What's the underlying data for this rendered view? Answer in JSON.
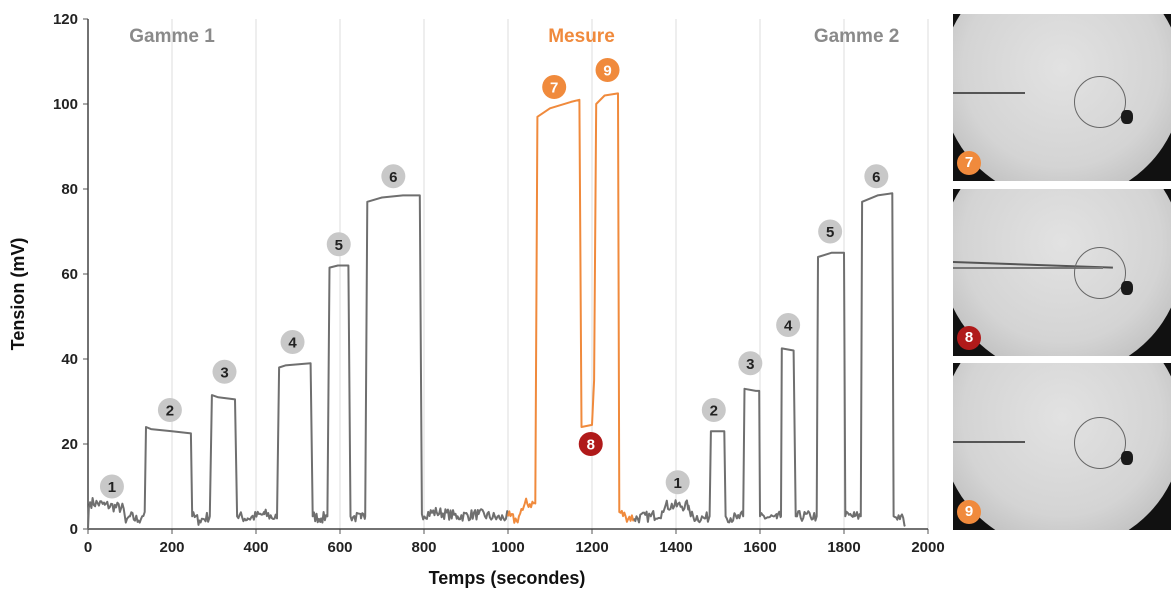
{
  "colors": {
    "gray": "#6f6f6f",
    "orange": "#f08a3c",
    "red": "#b01a1a",
    "badge_gray": "#c8c8c8"
  },
  "chart_data": {
    "type": "line",
    "xlabel": "Temps (secondes)",
    "ylabel": "Tension (mV)",
    "xlim": [
      0,
      2000
    ],
    "ylim": [
      0,
      120
    ],
    "xticks": [
      0,
      200,
      400,
      600,
      800,
      1000,
      1200,
      1400,
      1600,
      1800,
      2000
    ],
    "yticks": [
      0,
      20,
      40,
      60,
      80,
      100,
      120
    ],
    "grid": "vertical",
    "sections": [
      {
        "label": "Gamme 1",
        "x": 200,
        "color": "gray"
      },
      {
        "label": "Mesure",
        "x": 1175,
        "color": "orange"
      },
      {
        "label": "Gamme 2",
        "x": 1830,
        "color": "gray"
      }
    ],
    "series": [
      {
        "color": "gray",
        "points": [
          [
            0,
            0
          ],
          [
            2,
            5
          ],
          [
            5,
            6.3
          ],
          [
            40,
            5.7
          ],
          [
            85,
            4.8
          ],
          [
            90,
            1.5
          ],
          [
            100,
            3
          ],
          [
            120,
            2
          ],
          [
            135,
            4
          ],
          [
            138,
            24
          ],
          [
            150,
            23.5
          ],
          [
            200,
            23
          ],
          [
            245,
            22.5
          ],
          [
            248,
            3
          ],
          [
            265,
            2
          ],
          [
            290,
            3
          ],
          [
            295,
            31.5
          ],
          [
            310,
            31
          ],
          [
            350,
            30.5
          ],
          [
            355,
            3
          ],
          [
            380,
            2.5
          ],
          [
            420,
            3.5
          ],
          [
            450,
            2.5
          ],
          [
            455,
            38
          ],
          [
            470,
            38.5
          ],
          [
            530,
            39
          ],
          [
            535,
            3
          ],
          [
            555,
            2.5
          ],
          [
            570,
            3
          ],
          [
            575,
            61.5
          ],
          [
            595,
            62
          ],
          [
            620,
            62
          ],
          [
            625,
            3
          ],
          [
            650,
            2.5
          ],
          [
            660,
            3
          ],
          [
            665,
            77
          ],
          [
            700,
            78
          ],
          [
            750,
            78.5
          ],
          [
            790,
            78.5
          ],
          [
            795,
            3.5
          ],
          [
            830,
            4
          ],
          [
            880,
            3
          ],
          [
            930,
            3.5
          ],
          [
            980,
            2.5
          ],
          [
            1000,
            3
          ]
        ]
      },
      {
        "color": "orange",
        "points": [
          [
            1000,
            3
          ],
          [
            1020,
            2
          ],
          [
            1035,
            4.5
          ],
          [
            1040,
            6
          ],
          [
            1065,
            6
          ],
          [
            1070,
            97
          ],
          [
            1100,
            99
          ],
          [
            1150,
            100.5
          ],
          [
            1170,
            101
          ],
          [
            1175,
            24
          ],
          [
            1200,
            24.5
          ],
          [
            1205,
            35
          ],
          [
            1210,
            100
          ],
          [
            1230,
            102
          ],
          [
            1262,
            102.5
          ],
          [
            1265,
            4
          ],
          [
            1280,
            3
          ],
          [
            1300,
            2.5
          ]
        ]
      },
      {
        "color": "gray",
        "points": [
          [
            1300,
            2.5
          ],
          [
            1340,
            3
          ],
          [
            1370,
            4
          ],
          [
            1375,
            5.5
          ],
          [
            1430,
            5.5
          ],
          [
            1435,
            3
          ],
          [
            1470,
            2.5
          ],
          [
            1480,
            3
          ],
          [
            1483,
            23
          ],
          [
            1515,
            23
          ],
          [
            1518,
            3
          ],
          [
            1545,
            2.5
          ],
          [
            1560,
            3
          ],
          [
            1563,
            33
          ],
          [
            1590,
            32.5
          ],
          [
            1598,
            32.5
          ],
          [
            1600,
            3
          ],
          [
            1640,
            2.5
          ],
          [
            1650,
            3
          ],
          [
            1652,
            42.5
          ],
          [
            1680,
            42
          ],
          [
            1685,
            3
          ],
          [
            1720,
            3
          ],
          [
            1735,
            3
          ],
          [
            1738,
            64
          ],
          [
            1770,
            65
          ],
          [
            1800,
            65
          ],
          [
            1803,
            3
          ],
          [
            1825,
            3
          ],
          [
            1840,
            3
          ],
          [
            1843,
            77
          ],
          [
            1880,
            78.5
          ],
          [
            1915,
            79
          ],
          [
            1918,
            3
          ],
          [
            1935,
            3
          ],
          [
            1945,
            1
          ]
        ]
      }
    ],
    "annotations": [
      {
        "label": "1",
        "x": 57,
        "y": 10,
        "color": "badge_gray"
      },
      {
        "label": "2",
        "x": 195,
        "y": 28,
        "color": "badge_gray"
      },
      {
        "label": "3",
        "x": 325,
        "y": 37,
        "color": "badge_gray"
      },
      {
        "label": "4",
        "x": 487,
        "y": 44,
        "color": "badge_gray"
      },
      {
        "label": "5",
        "x": 597,
        "y": 67,
        "color": "badge_gray"
      },
      {
        "label": "6",
        "x": 727,
        "y": 83,
        "color": "badge_gray"
      },
      {
        "label": "7",
        "x": 1110,
        "y": 104,
        "color": "orange"
      },
      {
        "label": "9",
        "x": 1237,
        "y": 108,
        "color": "orange"
      },
      {
        "label": "8",
        "x": 1197,
        "y": 20,
        "color": "red"
      },
      {
        "label": "1",
        "x": 1404,
        "y": 11,
        "color": "badge_gray"
      },
      {
        "label": "2",
        "x": 1490,
        "y": 28,
        "color": "badge_gray"
      },
      {
        "label": "3",
        "x": 1577,
        "y": 39,
        "color": "badge_gray"
      },
      {
        "label": "4",
        "x": 1667,
        "y": 48,
        "color": "badge_gray"
      },
      {
        "label": "5",
        "x": 1767,
        "y": 70,
        "color": "badge_gray"
      },
      {
        "label": "6",
        "x": 1877,
        "y": 83,
        "color": "badge_gray"
      }
    ]
  },
  "photos": [
    {
      "badge": "7",
      "color": "orange",
      "name": "photo-7"
    },
    {
      "badge": "8",
      "color": "red",
      "name": "photo-8"
    },
    {
      "badge": "9",
      "color": "orange",
      "name": "photo-9"
    }
  ]
}
